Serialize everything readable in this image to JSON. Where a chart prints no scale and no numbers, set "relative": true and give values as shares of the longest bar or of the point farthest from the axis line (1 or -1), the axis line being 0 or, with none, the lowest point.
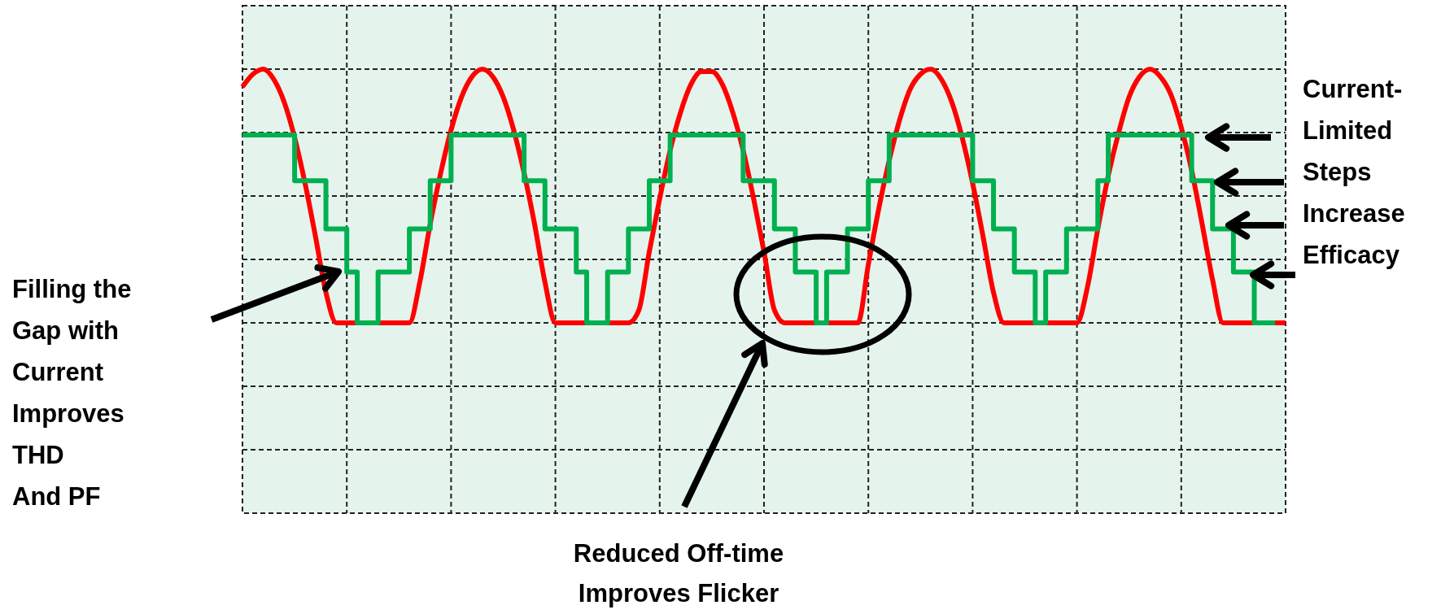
{
  "chart_data": {
    "type": "line",
    "relative": true,
    "grid": true,
    "categories": [
      null,
      null,
      null,
      null,
      null,
      null,
      null,
      null,
      null,
      null,
      null,
      null,
      null,
      null,
      null,
      null,
      null,
      null,
      null,
      null,
      null,
      null,
      null,
      null,
      null,
      null,
      null,
      null,
      null,
      null,
      null,
      null,
      null,
      null,
      null,
      null,
      null,
      null,
      null,
      null,
      null,
      null,
      null,
      null,
      null,
      null,
      null,
      null,
      null,
      null,
      null,
      null,
      null,
      null,
      null,
      null,
      null,
      null,
      null,
      null,
      null,
      null,
      null,
      null,
      null,
      null,
      null,
      null,
      null,
      null,
      null,
      null,
      null,
      null,
      null,
      null,
      null,
      null,
      null,
      null,
      null,
      null,
      null,
      null,
      null,
      null,
      null,
      null,
      null,
      null,
      null,
      null,
      null,
      null,
      null,
      null,
      null,
      null,
      null,
      null,
      null
    ],
    "series": [
      {
        "type": "line",
        "color": "#ff0000",
        "values": [
          0.93,
          0.98,
          1.0,
          0.96,
          0.87,
          0.73,
          0.55,
          0.34,
          0.12,
          0,
          0,
          0,
          0,
          0,
          0,
          0,
          0,
          0.16,
          0.39,
          0.59,
          0.76,
          0.89,
          0.97,
          1.0,
          0.97,
          0.89,
          0.76,
          0.59,
          0.39,
          0.16,
          0,
          0,
          0,
          0,
          0,
          0,
          0,
          0,
          0.05,
          0.28,
          0.49,
          0.68,
          0.83,
          0.94,
          0.99,
          0.99,
          0.94,
          0.83,
          0.68,
          0.49,
          0.28,
          0.05,
          0,
          0,
          0,
          0,
          0,
          0,
          0,
          0,
          0.23,
          0.45,
          0.64,
          0.8,
          0.92,
          0.98,
          1.0,
          0.96,
          0.87,
          0.73,
          0.55,
          0.34,
          0.12,
          0,
          0,
          0,
          0,
          0,
          0,
          0,
          0,
          0.14,
          0.37,
          0.58,
          0.75,
          0.89,
          0.97,
          1.0,
          0.97,
          0.9,
          0.77,
          0.6,
          0.39,
          0.17,
          0,
          0,
          0,
          0,
          0,
          0,
          0
        ]
      },
      {
        "type": "step",
        "color": "#00b050",
        "values": [
          0.74,
          0.74,
          0.74,
          0.74,
          0.74,
          0.56,
          0.56,
          0.56,
          0.37,
          0.37,
          0.2,
          0,
          0,
          0.2,
          0.2,
          0.2,
          0.37,
          0.37,
          0.56,
          0.56,
          0.74,
          0.74,
          0.74,
          0.74,
          0.74,
          0.74,
          0.74,
          0.56,
          0.56,
          0.37,
          0.37,
          0.37,
          0.2,
          0,
          0,
          0.2,
          0.2,
          0.37,
          0.37,
          0.56,
          0.56,
          0.74,
          0.74,
          0.74,
          0.74,
          0.74,
          0.74,
          0.74,
          0.56,
          0.56,
          0.56,
          0.37,
          0.37,
          0.2,
          0.2,
          0,
          0.2,
          0.2,
          0.37,
          0.37,
          0.56,
          0.56,
          0.74,
          0.74,
          0.74,
          0.74,
          0.74,
          0.74,
          0.74,
          0.74,
          0.56,
          0.56,
          0.37,
          0.37,
          0.2,
          0.2,
          0,
          0.2,
          0.2,
          0.37,
          0.37,
          0.37,
          0.56,
          0.74,
          0.74,
          0.74,
          0.74,
          0.74,
          0.74,
          0.74,
          0.74,
          0.56,
          0.56,
          0.37,
          0.37,
          0.2,
          0.2,
          0,
          0,
          0,
          null
        ]
      }
    ],
    "annotations": [
      "Filling the\nGap with\nCurrent\nImproves\nTHD\nAnd PF",
      "Reduced Off-time\nImproves Flicker",
      "Current-\nLimited\nSteps\nIncrease\nEfficacy"
    ]
  }
}
